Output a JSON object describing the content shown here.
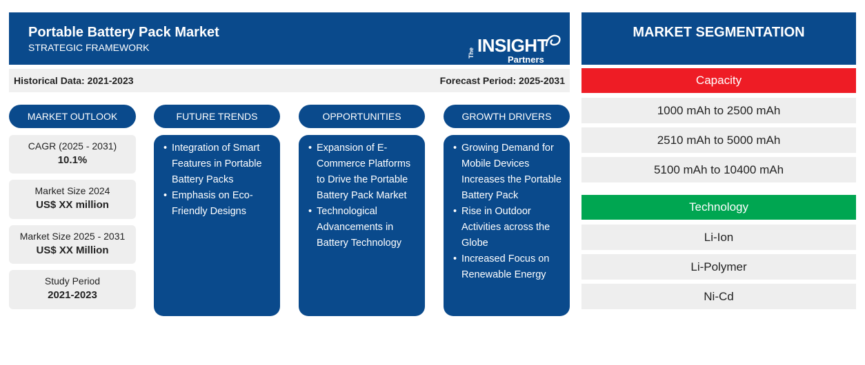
{
  "header": {
    "title": "Portable Battery Pack Market",
    "subtitle": "STRATEGIC FRAMEWORK",
    "logo": {
      "the": "The",
      "insight": "INSIGHT",
      "partners": "Partners"
    }
  },
  "info_bar": {
    "historical": "Historical Data: 2021-2023",
    "forecast": "Forecast Period: 2025-2031"
  },
  "columns": [
    {
      "label": "MARKET OUTLOOK"
    },
    {
      "label": "FUTURE TRENDS"
    },
    {
      "label": "OPPORTUNITIES"
    },
    {
      "label": "GROWTH DRIVERS"
    }
  ],
  "market_outlook": [
    {
      "label": "CAGR (2025 - 2031)",
      "value": "10.1%"
    },
    {
      "label": "Market Size 2024",
      "value": "US$ XX million"
    },
    {
      "label": "Market Size 2025 - 2031",
      "value": "US$ XX Million"
    },
    {
      "label": "Study Period",
      "value": "2021-2023"
    }
  ],
  "future_trends": [
    "Integration of Smart Features in Portable Battery Packs",
    "Emphasis on Eco-Friendly Designs"
  ],
  "opportunities": [
    "Expansion of E-Commerce Platforms to Drive the Portable Battery Pack Market",
    "Technological Advancements in Battery Technology"
  ],
  "growth_drivers": [
    "Growing Demand for Mobile Devices Increases the Portable Battery Pack",
    "Rise in Outdoor Activities across the Globe",
    "Increased Focus on Renewable Energy"
  ],
  "segmentation": {
    "title": "MARKET SEGMENTATION",
    "categories": [
      {
        "name": "Capacity",
        "color": "#ee1c25",
        "items": [
          "1000 mAh to 2500 mAh",
          "2510 mAh to 5000 mAh",
          "5100 mAh to 10400 mAh"
        ]
      },
      {
        "name": "Technology",
        "color": "#00a651",
        "items": [
          "Li-Ion",
          "Li-Polymer",
          "Ni-Cd"
        ]
      }
    ]
  }
}
